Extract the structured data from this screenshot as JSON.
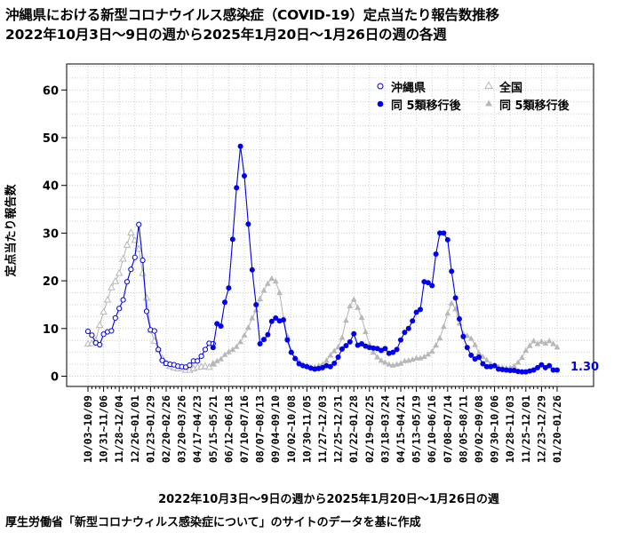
{
  "title_line1": "沖縄県における新型コロナウイルス感染症（COVID-19）定点当たり報告数推移",
  "title_line2": "2022年10月3日～9日の週から2025年1月20日～1月26日の週の各週",
  "source_note": "厚生労働省「新型コロナウィルス感染症について」のサイトのデータを基に作成",
  "end_value_label": "1.30",
  "colors": {
    "okinawa": "#0000ee",
    "national": "#b8b8b8",
    "grid": "#cccccc"
  },
  "chart_data": {
    "type": "line",
    "xlabel": "2022年10月3日～9日の週から2025年1月20日～1月26日の週",
    "ylabel": "定点当たり報告数",
    "ylim": [
      0,
      65
    ],
    "yticks": [
      0,
      10,
      20,
      30,
      40,
      50,
      60
    ],
    "n_weeks": 121,
    "x_tick_labels": [
      "10/03~10/09",
      "10/31~11/06",
      "11/28~12/04",
      "12/26~01/01",
      "01/23~01/29",
      "02/20~02/26",
      "03/20~03/26",
      "04/17~04/23",
      "05/15~05/21",
      "06/12~06/18",
      "07/10~07/16",
      "08/07~08/13",
      "09/04~09/10",
      "10/02~10/08",
      "10/30~11/05",
      "11/27~12/03",
      "12/25~12/31",
      "01/22~01/28",
      "02/19~02/25",
      "03/18~03/24",
      "04/15~04/21",
      "05/13~05/19",
      "06/10~06/16",
      "07/08~07/14",
      "08/05~08/11",
      "09/02~09/08",
      "09/30~10/06",
      "10/28~11/03",
      "11/25~12/01",
      "12/23~12/29",
      "01/20~01/26"
    ],
    "legend": {
      "position": "top-right",
      "entries": [
        "沖縄県",
        "同 5類移行後",
        "全国",
        "同 5類移行後"
      ]
    },
    "series": [
      {
        "name": "沖縄県",
        "marker": "open-circle",
        "x": [
          0,
          1,
          2,
          3,
          4,
          5,
          6,
          7,
          8,
          9,
          10,
          11,
          12,
          13,
          14,
          15,
          16,
          17,
          18,
          19,
          20,
          21,
          22,
          23,
          24,
          25,
          26,
          27,
          28,
          29,
          30,
          31,
          32
        ],
        "values": [
          9.4,
          8.6,
          7.0,
          6.6,
          8.8,
          9.3,
          9.5,
          12.2,
          14.2,
          16.0,
          19.8,
          22.4,
          24.9,
          31.8,
          24.3,
          13.6,
          9.7,
          9.5,
          5.6,
          3.3,
          2.7,
          2.5,
          2.4,
          2.1,
          2.0,
          1.9,
          2.3,
          3.2,
          3.2,
          4.2,
          5.6,
          6.9,
          6.8
        ]
      },
      {
        "name": "同 5類移行後",
        "marker": "filled-circle",
        "x": [
          32,
          33,
          34,
          35,
          36,
          37,
          38,
          39,
          40,
          41,
          42,
          43,
          44,
          45,
          46,
          47,
          48,
          49,
          50,
          51,
          52,
          53,
          54,
          55,
          56,
          57,
          58,
          59,
          60,
          61,
          62,
          63,
          64,
          65,
          66,
          67,
          68,
          69,
          70,
          71,
          72,
          73,
          74,
          75,
          76,
          77,
          78,
          79,
          80,
          81,
          82,
          83,
          84,
          85,
          86,
          87,
          88,
          89,
          90,
          91,
          92,
          93,
          94,
          95,
          96,
          97,
          98,
          99,
          100,
          101,
          102,
          103,
          104,
          105,
          106,
          107,
          108,
          109,
          110,
          111,
          112,
          113,
          114,
          115,
          116,
          117,
          118,
          119,
          120
        ],
        "values": [
          6.0,
          11.0,
          10.5,
          15.5,
          18.5,
          28.7,
          39.5,
          48.2,
          42.0,
          31.9,
          22.3,
          15.0,
          6.8,
          7.7,
          8.7,
          11.5,
          12.2,
          11.6,
          11.8,
          7.6,
          5.0,
          3.7,
          2.6,
          2.2,
          2.0,
          1.7,
          1.5,
          1.6,
          1.8,
          2.2,
          2.0,
          2.7,
          4.0,
          5.7,
          6.4,
          7.2,
          8.9,
          6.5,
          6.8,
          6.3,
          6.0,
          5.9,
          5.8,
          5.4,
          5.8,
          4.8,
          5.0,
          5.6,
          7.6,
          9.2,
          10.0,
          11.6,
          13.4,
          14.0,
          19.8,
          19.6,
          19.0,
          25.6,
          30.0,
          30.0,
          28.6,
          22.0,
          16.4,
          12.0,
          8.3,
          6.0,
          4.4,
          3.6,
          4.0,
          2.6,
          2.0,
          2.0,
          2.2,
          1.5,
          1.4,
          1.3,
          1.2,
          1.2,
          1.0,
          0.9,
          0.9,
          1.1,
          1.3,
          1.8,
          2.4,
          1.8,
          2.2,
          1.3,
          1.3
        ]
      },
      {
        "name": "全国",
        "marker": "open-triangle",
        "x": [
          0,
          1,
          2,
          3,
          4,
          5,
          6,
          7,
          8,
          9,
          10,
          11,
          12,
          13,
          14,
          15,
          16,
          17,
          18,
          19,
          20,
          21,
          22,
          23,
          24,
          25,
          26,
          27,
          28,
          29,
          30,
          31,
          32
        ],
        "values": [
          6.8,
          6.9,
          7.5,
          10.7,
          13.5,
          16.0,
          18.6,
          19.9,
          21.6,
          24.6,
          27.5,
          30.1,
          28.5,
          26.7,
          21.6,
          16.4,
          9.7,
          7.4,
          5.6,
          3.8,
          2.7,
          2.1,
          1.8,
          1.6,
          1.6,
          1.3,
          1.3,
          1.6,
          1.9,
          2.0,
          2.1,
          1.9,
          2.6
        ]
      },
      {
        "name": "同 5類移行後",
        "marker": "filled-triangle",
        "x": [
          32,
          33,
          34,
          35,
          36,
          37,
          38,
          39,
          40,
          41,
          42,
          43,
          44,
          45,
          46,
          47,
          48,
          49,
          50,
          51,
          52,
          53,
          54,
          55,
          56,
          57,
          58,
          59,
          60,
          61,
          62,
          63,
          64,
          65,
          66,
          67,
          68,
          69,
          70,
          71,
          72,
          73,
          74,
          75,
          76,
          77,
          78,
          79,
          80,
          81,
          82,
          83,
          84,
          85,
          86,
          87,
          88,
          89,
          90,
          91,
          92,
          93,
          94,
          95,
          96,
          97,
          98,
          99,
          100,
          101,
          102,
          103,
          104,
          105,
          106,
          107,
          108,
          109,
          110,
          111,
          112,
          113,
          114,
          115,
          116,
          117,
          118,
          119,
          120
        ],
        "values": [
          2.6,
          3.2,
          3.6,
          4.5,
          5.1,
          5.6,
          6.2,
          7.2,
          8.6,
          10.2,
          12.2,
          13.9,
          16.2,
          18.0,
          19.4,
          20.5,
          19.9,
          17.5,
          12.2,
          8.4,
          5.3,
          3.8,
          3.0,
          2.5,
          2.3,
          1.9,
          1.9,
          2.2,
          2.5,
          3.3,
          4.4,
          5.3,
          6.1,
          8.1,
          11.7,
          14.7,
          16.1,
          14.4,
          12.3,
          9.3,
          6.7,
          5.0,
          4.0,
          3.3,
          2.9,
          2.5,
          2.3,
          2.5,
          2.7,
          3.2,
          3.3,
          3.5,
          3.8,
          3.8,
          4.1,
          4.6,
          5.2,
          6.5,
          8.0,
          10.4,
          13.2,
          15.3,
          14.1,
          11.1,
          8.9,
          8.5,
          7.9,
          6.6,
          4.9,
          4.1,
          3.4,
          2.6,
          2.3,
          2.0,
          1.8,
          1.7,
          1.8,
          2.1,
          2.9,
          3.9,
          5.4,
          6.4,
          7.4,
          6.8,
          7.3,
          6.9,
          7.4,
          6.8,
          6.1
        ]
      }
    ]
  }
}
